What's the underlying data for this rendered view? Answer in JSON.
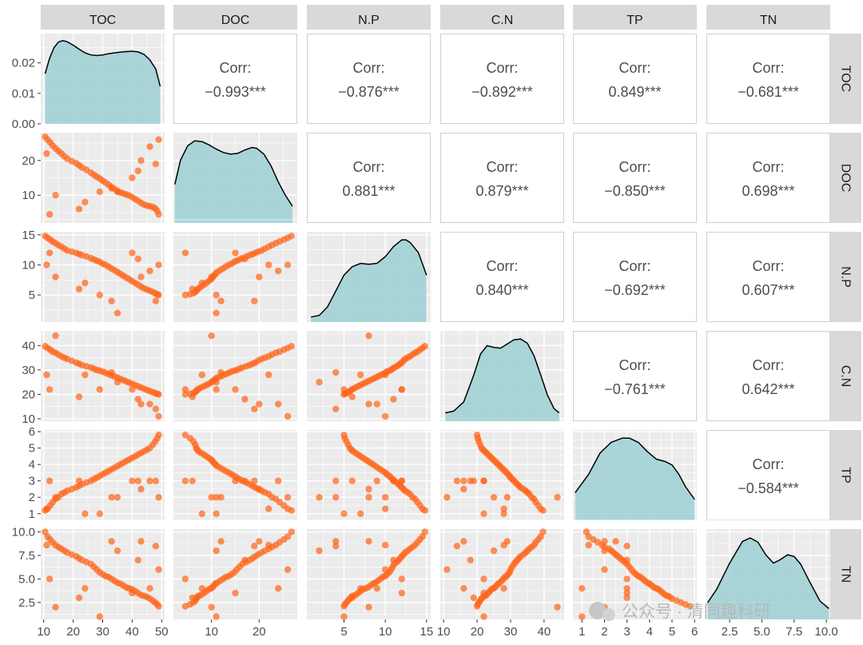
{
  "colors": {
    "panel_bg": "#ebebeb",
    "grid": "#ffffff",
    "strip_bg": "#d9d9d9",
    "point": "#ff6418",
    "density_fill": "#9dd0d3",
    "density_line": "#000000",
    "border": "#cfcfcf",
    "text": "#4d4d4d"
  },
  "watermark": "公众号 · 清同趣科研",
  "chart_data": {
    "type": "scatter-matrix",
    "variables": [
      "TOC",
      "DOC",
      "N.P",
      "C.N",
      "TP",
      "TN"
    ],
    "corr_label": "Corr:",
    "correlations": [
      {
        "row": "DOC",
        "col": "TOC",
        "value": "-0.993***"
      },
      {
        "row": "N.P",
        "col": "TOC",
        "value": "-0.876***"
      },
      {
        "row": "C.N",
        "col": "TOC",
        "value": "-0.892***"
      },
      {
        "row": "TP",
        "col": "TOC",
        "value": "0.849***"
      },
      {
        "row": "TN",
        "col": "TOC",
        "value": "-0.681***"
      },
      {
        "row": "N.P",
        "col": "DOC",
        "value": "0.881***"
      },
      {
        "row": "C.N",
        "col": "DOC",
        "value": "0.879***"
      },
      {
        "row": "TP",
        "col": "DOC",
        "value": "-0.850***"
      },
      {
        "row": "TN",
        "col": "DOC",
        "value": "0.698***"
      },
      {
        "row": "C.N",
        "col": "N.P",
        "value": "0.840***"
      },
      {
        "row": "TP",
        "col": "N.P",
        "value": "-0.692***"
      },
      {
        "row": "TN",
        "col": "N.P",
        "value": "0.607***"
      },
      {
        "row": "TP",
        "col": "C.N",
        "value": "-0.761***"
      },
      {
        "row": "TN",
        "col": "C.N",
        "value": "0.642***"
      },
      {
        "row": "TN",
        "col": "TP",
        "value": "-0.584***"
      }
    ],
    "ranges": {
      "TOC": [
        9,
        51
      ],
      "DOC": [
        2,
        28
      ],
      "N.P": [
        0.5,
        15.5
      ],
      "C.N": [
        9,
        46
      ],
      "TP": [
        0.6,
        6.1
      ],
      "TN": [
        0.7,
        10.3
      ]
    },
    "x_ticks": {
      "TOC": [
        "10",
        "20",
        "30",
        "40",
        "50"
      ],
      "DOC": [
        "10",
        "20"
      ],
      "N.P": [
        "5",
        "10",
        "15"
      ],
      "C.N": [
        "10",
        "20",
        "30",
        "40"
      ],
      "TP": [
        "1",
        "2",
        "3",
        "4",
        "5",
        "6"
      ],
      "TN": [
        "2.5",
        "5.0",
        "7.5",
        "10.0"
      ]
    },
    "y_ticks": {
      "TOC_density": [
        "0.00",
        "0.01",
        "0.02"
      ],
      "DOC": [
        "10",
        "20"
      ],
      "N.P": [
        "5",
        "10",
        "15"
      ],
      "C.N": [
        "10",
        "20",
        "30",
        "40"
      ],
      "TP": [
        "1",
        "2",
        "3",
        "4",
        "5",
        "6"
      ],
      "TN": [
        "2.5",
        "5.0",
        "7.5",
        "10.0"
      ]
    },
    "density_ylim_TOC": [
      0,
      0.0296
    ],
    "observations": [
      {
        "TOC": 10.5,
        "DOC": 26.8,
        "N.P": 14.8,
        "C.N": 39.7,
        "TP": 1.2,
        "TN": 10.0
      },
      {
        "TOC": 11.3,
        "DOC": 26.0,
        "N.P": 14.5,
        "C.N": 39.0,
        "TP": 1.3,
        "TN": 9.5
      },
      {
        "TOC": 12.2,
        "DOC": 25.2,
        "N.P": 14.2,
        "C.N": 38.3,
        "TP": 1.5,
        "TN": 9.2
      },
      {
        "TOC": 13.0,
        "DOC": 24.3,
        "N.P": 13.9,
        "C.N": 37.5,
        "TP": 1.7,
        "TN": 8.9
      },
      {
        "TOC": 14.0,
        "DOC": 23.5,
        "N.P": 13.6,
        "C.N": 37.0,
        "TP": 1.9,
        "TN": 8.6
      },
      {
        "TOC": 15.0,
        "DOC": 22.7,
        "N.P": 13.3,
        "C.N": 36.3,
        "TP": 2.0,
        "TN": 8.4
      },
      {
        "TOC": 16.0,
        "DOC": 22.0,
        "N.P": 13.0,
        "C.N": 35.6,
        "TP": 2.2,
        "TN": 8.2
      },
      {
        "TOC": 17.0,
        "DOC": 21.2,
        "N.P": 12.7,
        "C.N": 35.0,
        "TP": 2.3,
        "TN": 8.0
      },
      {
        "TOC": 18.0,
        "DOC": 20.5,
        "N.P": 12.4,
        "C.N": 34.5,
        "TP": 2.4,
        "TN": 7.8
      },
      {
        "TOC": 19.5,
        "DOC": 19.8,
        "N.P": 12.2,
        "C.N": 33.8,
        "TP": 2.5,
        "TN": 7.6
      },
      {
        "TOC": 21.0,
        "DOC": 19.2,
        "N.P": 12.0,
        "C.N": 33.0,
        "TP": 2.6,
        "TN": 7.4
      },
      {
        "TOC": 22.0,
        "DOC": 18.6,
        "N.P": 11.8,
        "C.N": 32.5,
        "TP": 2.7,
        "TN": 7.2
      },
      {
        "TOC": 23.0,
        "DOC": 18.0,
        "N.P": 11.6,
        "C.N": 32.0,
        "TP": 2.8,
        "TN": 7.0
      },
      {
        "TOC": 24.5,
        "DOC": 17.3,
        "N.P": 11.4,
        "C.N": 31.5,
        "TP": 2.9,
        "TN": 6.8
      },
      {
        "TOC": 26.0,
        "DOC": 16.5,
        "N.P": 11.1,
        "C.N": 31.0,
        "TP": 3.0,
        "TN": 6.6
      },
      {
        "TOC": 27.0,
        "DOC": 15.9,
        "N.P": 10.9,
        "C.N": 30.5,
        "TP": 3.1,
        "TN": 6.3
      },
      {
        "TOC": 28.0,
        "DOC": 15.3,
        "N.P": 10.7,
        "C.N": 30.0,
        "TP": 3.2,
        "TN": 6.0
      },
      {
        "TOC": 29.0,
        "DOC": 14.8,
        "N.P": 10.5,
        "C.N": 29.7,
        "TP": 3.3,
        "TN": 5.7
      },
      {
        "TOC": 30.0,
        "DOC": 14.2,
        "N.P": 10.2,
        "C.N": 29.3,
        "TP": 3.4,
        "TN": 5.5
      },
      {
        "TOC": 31.0,
        "DOC": 13.6,
        "N.P": 10.0,
        "C.N": 28.8,
        "TP": 3.5,
        "TN": 5.3
      },
      {
        "TOC": 32.0,
        "DOC": 13.0,
        "N.P": 9.7,
        "C.N": 28.3,
        "TP": 3.6,
        "TN": 5.2
      },
      {
        "TOC": 33.0,
        "DOC": 12.4,
        "N.P": 9.4,
        "C.N": 27.8,
        "TP": 3.7,
        "TN": 5.0
      },
      {
        "TOC": 34.0,
        "DOC": 11.8,
        "N.P": 9.1,
        "C.N": 27.3,
        "TP": 3.8,
        "TN": 4.8
      },
      {
        "TOC": 35.0,
        "DOC": 11.2,
        "N.P": 8.8,
        "C.N": 26.8,
        "TP": 3.9,
        "TN": 4.6
      },
      {
        "TOC": 36.0,
        "DOC": 10.8,
        "N.P": 8.5,
        "C.N": 26.3,
        "TP": 4.0,
        "TN": 4.5
      },
      {
        "TOC": 37.0,
        "DOC": 10.5,
        "N.P": 8.2,
        "C.N": 25.8,
        "TP": 4.1,
        "TN": 4.3
      },
      {
        "TOC": 38.0,
        "DOC": 10.2,
        "N.P": 7.9,
        "C.N": 25.3,
        "TP": 4.2,
        "TN": 4.1
      },
      {
        "TOC": 39.0,
        "DOC": 9.9,
        "N.P": 7.6,
        "C.N": 24.8,
        "TP": 4.3,
        "TN": 4.0
      },
      {
        "TOC": 40.0,
        "DOC": 9.4,
        "N.P": 7.3,
        "C.N": 24.3,
        "TP": 4.4,
        "TN": 3.9
      },
      {
        "TOC": 41.0,
        "DOC": 8.9,
        "N.P": 7.0,
        "C.N": 23.8,
        "TP": 4.5,
        "TN": 3.7
      },
      {
        "TOC": 42.0,
        "DOC": 8.4,
        "N.P": 6.7,
        "C.N": 23.3,
        "TP": 4.6,
        "TN": 3.5
      },
      {
        "TOC": 43.0,
        "DOC": 7.8,
        "N.P": 6.4,
        "C.N": 22.8,
        "TP": 4.7,
        "TN": 3.3
      },
      {
        "TOC": 44.0,
        "DOC": 7.3,
        "N.P": 6.1,
        "C.N": 22.3,
        "TP": 4.8,
        "TN": 3.2
      },
      {
        "TOC": 45.0,
        "DOC": 7.0,
        "N.P": 5.9,
        "C.N": 21.8,
        "TP": 4.9,
        "TN": 3.1
      },
      {
        "TOC": 46.0,
        "DOC": 6.8,
        "N.P": 5.7,
        "C.N": 21.3,
        "TP": 5.0,
        "TN": 2.9
      },
      {
        "TOC": 47.0,
        "DOC": 6.6,
        "N.P": 5.5,
        "C.N": 20.9,
        "TP": 5.2,
        "TN": 2.7
      },
      {
        "TOC": 47.8,
        "DOC": 6.2,
        "N.P": 5.3,
        "C.N": 20.5,
        "TP": 5.4,
        "TN": 2.5
      },
      {
        "TOC": 48.5,
        "DOC": 5.5,
        "N.P": 5.1,
        "C.N": 20.2,
        "TP": 5.6,
        "TN": 2.3
      },
      {
        "TOC": 49.0,
        "DOC": 4.5,
        "N.P": 5.0,
        "C.N": 20.0,
        "TP": 5.8,
        "TN": 2.1
      },
      {
        "TOC": 11.0,
        "DOC": 22.0,
        "N.P": 10.0,
        "C.N": 28.0,
        "TP": 1.3,
        "TN": 8.6
      },
      {
        "TOC": 12.0,
        "DOC": 4.5,
        "N.P": 12.0,
        "C.N": 22.0,
        "TP": 3.0,
        "TN": 5.0
      },
      {
        "TOC": 14.0,
        "DOC": 10.0,
        "N.P": 8.0,
        "C.N": 44.0,
        "TP": 2.0,
        "TN": 2.0
      },
      {
        "TOC": 22.0,
        "DOC": 6.0,
        "N.P": 6.0,
        "C.N": 19.0,
        "TP": 3.0,
        "TN": 3.0
      },
      {
        "TOC": 24.0,
        "DOC": 8.0,
        "N.P": 7.0,
        "C.N": 28.0,
        "TP": 1.0,
        "TN": 4.0
      },
      {
        "TOC": 29.0,
        "DOC": 11.0,
        "N.P": 5.0,
        "C.N": 22.0,
        "TP": 1.0,
        "TN": 1.0
      },
      {
        "TOC": 33.0,
        "DOC": 12.0,
        "N.P": 4.0,
        "C.N": 29.0,
        "TP": 2.0,
        "TN": 9.0
      },
      {
        "TOC": 35.0,
        "DOC": 11.0,
        "N.P": 2.0,
        "C.N": 25.0,
        "TP": 2.0,
        "TN": 8.0
      },
      {
        "TOC": 40.0,
        "DOC": 15.0,
        "N.P": 12.0,
        "C.N": 22.0,
        "TP": 3.0,
        "TN": 3.5
      },
      {
        "TOC": 42.0,
        "DOC": 17.0,
        "N.P": 11.0,
        "C.N": 18.0,
        "TP": 3.0,
        "TN": 7.0
      },
      {
        "TOC": 43.0,
        "DOC": 20.0,
        "N.P": 8.0,
        "C.N": 16.0,
        "TP": 2.5,
        "TN": 9.0
      },
      {
        "TOC": 46.0,
        "DOC": 24.0,
        "N.P": 9.0,
        "C.N": 16.0,
        "TP": 3.0,
        "TN": 4.0
      },
      {
        "TOC": 48.0,
        "DOC": 19.0,
        "N.P": 4.0,
        "C.N": 14.0,
        "TP": 3.0,
        "TN": 8.5
      },
      {
        "TOC": 49.0,
        "DOC": 26.0,
        "N.P": 10.0,
        "C.N": 11.0,
        "TP": 2.0,
        "TN": 6.0
      }
    ],
    "density": {
      "TOC": [
        [
          10.5,
          0.0165
        ],
        [
          12,
          0.0215
        ],
        [
          13.5,
          0.025
        ],
        [
          15,
          0.0268
        ],
        [
          16.5,
          0.0273
        ],
        [
          18,
          0.0269
        ],
        [
          20,
          0.0258
        ],
        [
          22,
          0.0245
        ],
        [
          24,
          0.0233
        ],
        [
          26,
          0.0226
        ],
        [
          28,
          0.0224
        ],
        [
          30,
          0.0226
        ],
        [
          32,
          0.023
        ],
        [
          34,
          0.0233
        ],
        [
          36,
          0.0235
        ],
        [
          38,
          0.0237
        ],
        [
          40,
          0.0238
        ],
        [
          42,
          0.0236
        ],
        [
          44,
          0.0228
        ],
        [
          46,
          0.021
        ],
        [
          48,
          0.018
        ],
        [
          49.5,
          0.0123
        ]
      ],
      "DOC": [
        [
          2.3,
          0.46
        ],
        [
          3.5,
          0.75
        ],
        [
          5,
          0.92
        ],
        [
          6.5,
          0.98
        ],
        [
          8,
          0.97
        ],
        [
          9.5,
          0.93
        ],
        [
          11,
          0.88
        ],
        [
          12.5,
          0.84
        ],
        [
          14,
          0.82
        ],
        [
          15.5,
          0.83
        ],
        [
          17,
          0.87
        ],
        [
          18.5,
          0.9
        ],
        [
          19.5,
          0.89
        ],
        [
          21,
          0.82
        ],
        [
          22.5,
          0.68
        ],
        [
          24,
          0.49
        ],
        [
          25.5,
          0.33
        ],
        [
          27,
          0.2
        ]
      ],
      "N.P": [
        [
          1,
          0.06
        ],
        [
          2,
          0.08
        ],
        [
          3,
          0.18
        ],
        [
          4,
          0.37
        ],
        [
          5,
          0.56
        ],
        [
          6,
          0.66
        ],
        [
          7,
          0.7
        ],
        [
          8,
          0.69
        ],
        [
          9,
          0.7
        ],
        [
          10,
          0.78
        ],
        [
          11,
          0.9
        ],
        [
          12,
          0.98
        ],
        [
          12.5,
          0.98
        ],
        [
          13,
          0.95
        ],
        [
          14,
          0.83
        ],
        [
          15,
          0.56
        ]
      ],
      "C.N": [
        [
          10.5,
          0.1
        ],
        [
          13,
          0.12
        ],
        [
          16,
          0.23
        ],
        [
          19,
          0.55
        ],
        [
          21,
          0.8
        ],
        [
          23,
          0.9
        ],
        [
          25,
          0.88
        ],
        [
          27,
          0.87
        ],
        [
          29,
          0.92
        ],
        [
          31,
          0.97
        ],
        [
          33,
          0.98
        ],
        [
          35,
          0.93
        ],
        [
          37,
          0.78
        ],
        [
          39,
          0.55
        ],
        [
          41,
          0.31
        ],
        [
          43,
          0.15
        ],
        [
          44.5,
          0.1
        ]
      ],
      "TP": [
        [
          0.7,
          0.33
        ],
        [
          1.3,
          0.55
        ],
        [
          1.8,
          0.8
        ],
        [
          2.3,
          0.93
        ],
        [
          2.8,
          0.98
        ],
        [
          3.1,
          0.98
        ],
        [
          3.5,
          0.93
        ],
        [
          3.9,
          0.82
        ],
        [
          4.3,
          0.73
        ],
        [
          4.7,
          0.7
        ],
        [
          5.0,
          0.66
        ],
        [
          5.3,
          0.55
        ],
        [
          5.6,
          0.4
        ],
        [
          6.0,
          0.25
        ]
      ],
      "TN": [
        [
          0.8,
          0.2
        ],
        [
          1.5,
          0.36
        ],
        [
          2.5,
          0.67
        ],
        [
          3.5,
          0.93
        ],
        [
          4.1,
          0.97
        ],
        [
          4.7,
          0.92
        ],
        [
          5.3,
          0.77
        ],
        [
          5.9,
          0.67
        ],
        [
          6.4,
          0.71
        ],
        [
          7.0,
          0.77
        ],
        [
          7.5,
          0.75
        ],
        [
          8.0,
          0.66
        ],
        [
          8.7,
          0.45
        ],
        [
          9.5,
          0.22
        ],
        [
          10.2,
          0.13
        ]
      ]
    }
  }
}
